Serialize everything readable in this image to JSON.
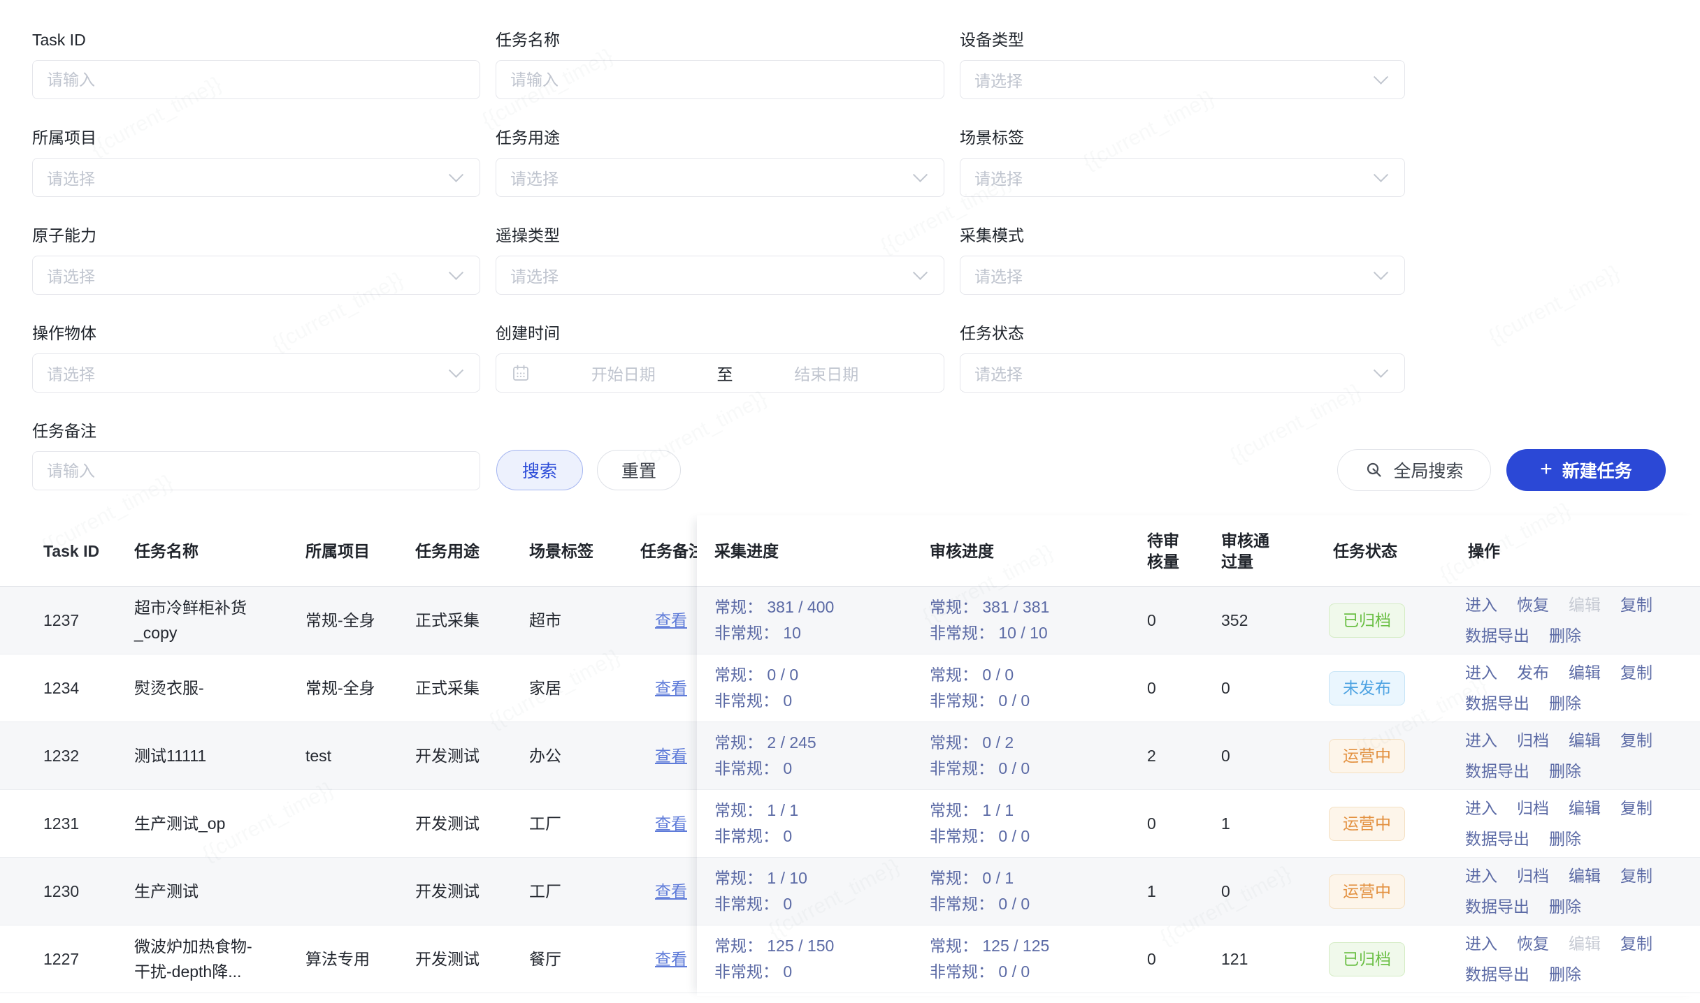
{
  "watermark": "{{current_time}}",
  "colors": {
    "accent": "#2b48d6",
    "link": "#5b6aa5",
    "view_link": "#5e7bd9",
    "status_archived": "#6abf44",
    "status_unpublished": "#4ea3e2",
    "status_operating": "#e39140"
  },
  "filters": {
    "fields": [
      {
        "label": "Task ID",
        "type": "input",
        "placeholder": "请输入"
      },
      {
        "label": "任务名称",
        "type": "input",
        "placeholder": "请输入"
      },
      {
        "label": "设备类型",
        "type": "select",
        "placeholder": "请选择"
      },
      {
        "label": "所属项目",
        "type": "select",
        "placeholder": "请选择"
      },
      {
        "label": "任务用途",
        "type": "select",
        "placeholder": "请选择"
      },
      {
        "label": "场景标签",
        "type": "select",
        "placeholder": "请选择"
      },
      {
        "label": "原子能力",
        "type": "select",
        "placeholder": "请选择"
      },
      {
        "label": "遥操类型",
        "type": "select",
        "placeholder": "请选择"
      },
      {
        "label": "采集模式",
        "type": "select",
        "placeholder": "请选择"
      },
      {
        "label": "操作物体",
        "type": "select",
        "placeholder": "请选择"
      },
      {
        "label": "创建时间",
        "type": "daterange",
        "start_placeholder": "开始日期",
        "separator": "至",
        "end_placeholder": "结束日期"
      },
      {
        "label": "任务状态",
        "type": "select",
        "placeholder": "请选择"
      },
      {
        "label": "任务备注",
        "type": "input",
        "placeholder": "请输入"
      }
    ],
    "search_button": "搜索",
    "reset_button": "重置"
  },
  "toolbar": {
    "global_search": "全局搜索",
    "new_task": "新建任务",
    "plus": "+"
  },
  "table": {
    "columns": {
      "id": "Task ID",
      "name": "任务名称",
      "project": "所属项目",
      "purpose": "任务用途",
      "scene": "场景标签",
      "remark": "任务备注",
      "collect": "采集进度",
      "review": "审核进度",
      "pending": "待审核量",
      "approved": "审核通过量",
      "status": "任务状态",
      "actions": "操作"
    },
    "rows": [
      {
        "id": "1237",
        "name": "超市冷鲜柜补货_copy",
        "project": "常规-全身",
        "purpose": "正式采集",
        "scene": "超市",
        "remark_link": "查看",
        "collect": [
          "常规： 381 / 400",
          "非常规： 10"
        ],
        "review": [
          "常规： 381 / 381",
          "非常规： 10 / 10"
        ],
        "pending": "0",
        "approved": "352",
        "status": {
          "text": "已归档",
          "type": "archived"
        },
        "actions": [
          {
            "label": "进入"
          },
          {
            "label": "恢复"
          },
          {
            "label": "编辑",
            "disabled": true
          },
          {
            "label": "复制"
          },
          {
            "label": "数据导出"
          },
          {
            "label": "删除"
          }
        ]
      },
      {
        "id": "1234",
        "name": "熨烫衣服-",
        "project": "常规-全身",
        "purpose": "正式采集",
        "scene": "家居",
        "remark_link": "查看",
        "collect": [
          "常规： 0 / 0",
          "非常规： 0"
        ],
        "review": [
          "常规： 0 / 0",
          "非常规： 0 / 0"
        ],
        "pending": "0",
        "approved": "0",
        "status": {
          "text": "未发布",
          "type": "unpublished"
        },
        "actions": [
          {
            "label": "进入"
          },
          {
            "label": "发布"
          },
          {
            "label": "编辑"
          },
          {
            "label": "复制"
          },
          {
            "label": "数据导出"
          },
          {
            "label": "删除"
          }
        ]
      },
      {
        "id": "1232",
        "name": "测试11111",
        "project": "test",
        "purpose": "开发测试",
        "scene": "办公",
        "remark_link": "查看",
        "collect": [
          "常规： 2 / 245",
          "非常规： 0"
        ],
        "review": [
          "常规： 0 / 2",
          "非常规： 0 / 0"
        ],
        "pending": "2",
        "approved": "0",
        "status": {
          "text": "运营中",
          "type": "operating"
        },
        "actions": [
          {
            "label": "进入"
          },
          {
            "label": "归档"
          },
          {
            "label": "编辑"
          },
          {
            "label": "复制"
          },
          {
            "label": "数据导出"
          },
          {
            "label": "删除"
          }
        ]
      },
      {
        "id": "1231",
        "name": "生产测试_op",
        "project": "",
        "purpose": "开发测试",
        "scene": "工厂",
        "remark_link": "查看",
        "collect": [
          "常规： 1 / 1",
          "非常规： 0"
        ],
        "review": [
          "常规： 1 / 1",
          "非常规： 0 / 0"
        ],
        "pending": "0",
        "approved": "1",
        "status": {
          "text": "运营中",
          "type": "operating"
        },
        "actions": [
          {
            "label": "进入"
          },
          {
            "label": "归档"
          },
          {
            "label": "编辑"
          },
          {
            "label": "复制"
          },
          {
            "label": "数据导出"
          },
          {
            "label": "删除"
          }
        ]
      },
      {
        "id": "1230",
        "name": "生产测试",
        "project": "",
        "purpose": "开发测试",
        "scene": "工厂",
        "remark_link": "查看",
        "collect": [
          "常规： 1 / 10",
          "非常规： 0"
        ],
        "review": [
          "常规： 0 / 1",
          "非常规： 0 / 0"
        ],
        "pending": "1",
        "approved": "0",
        "status": {
          "text": "运营中",
          "type": "operating"
        },
        "actions": [
          {
            "label": "进入"
          },
          {
            "label": "归档"
          },
          {
            "label": "编辑"
          },
          {
            "label": "复制"
          },
          {
            "label": "数据导出"
          },
          {
            "label": "删除"
          }
        ]
      },
      {
        "id": "1227",
        "name": "微波炉加热食物-干扰-depth降...",
        "project": "算法专用",
        "purpose": "开发测试",
        "scene": "餐厅",
        "remark_link": "查看",
        "collect": [
          "常规： 125 / 150",
          "非常规： 0"
        ],
        "review": [
          "常规： 125 / 125",
          "非常规： 0 / 0"
        ],
        "pending": "0",
        "approved": "121",
        "status": {
          "text": "已归档",
          "type": "archived"
        },
        "actions": [
          {
            "label": "进入"
          },
          {
            "label": "恢复"
          },
          {
            "label": "编辑",
            "disabled": true
          },
          {
            "label": "复制"
          },
          {
            "label": "数据导出"
          },
          {
            "label": "删除"
          }
        ]
      }
    ]
  }
}
